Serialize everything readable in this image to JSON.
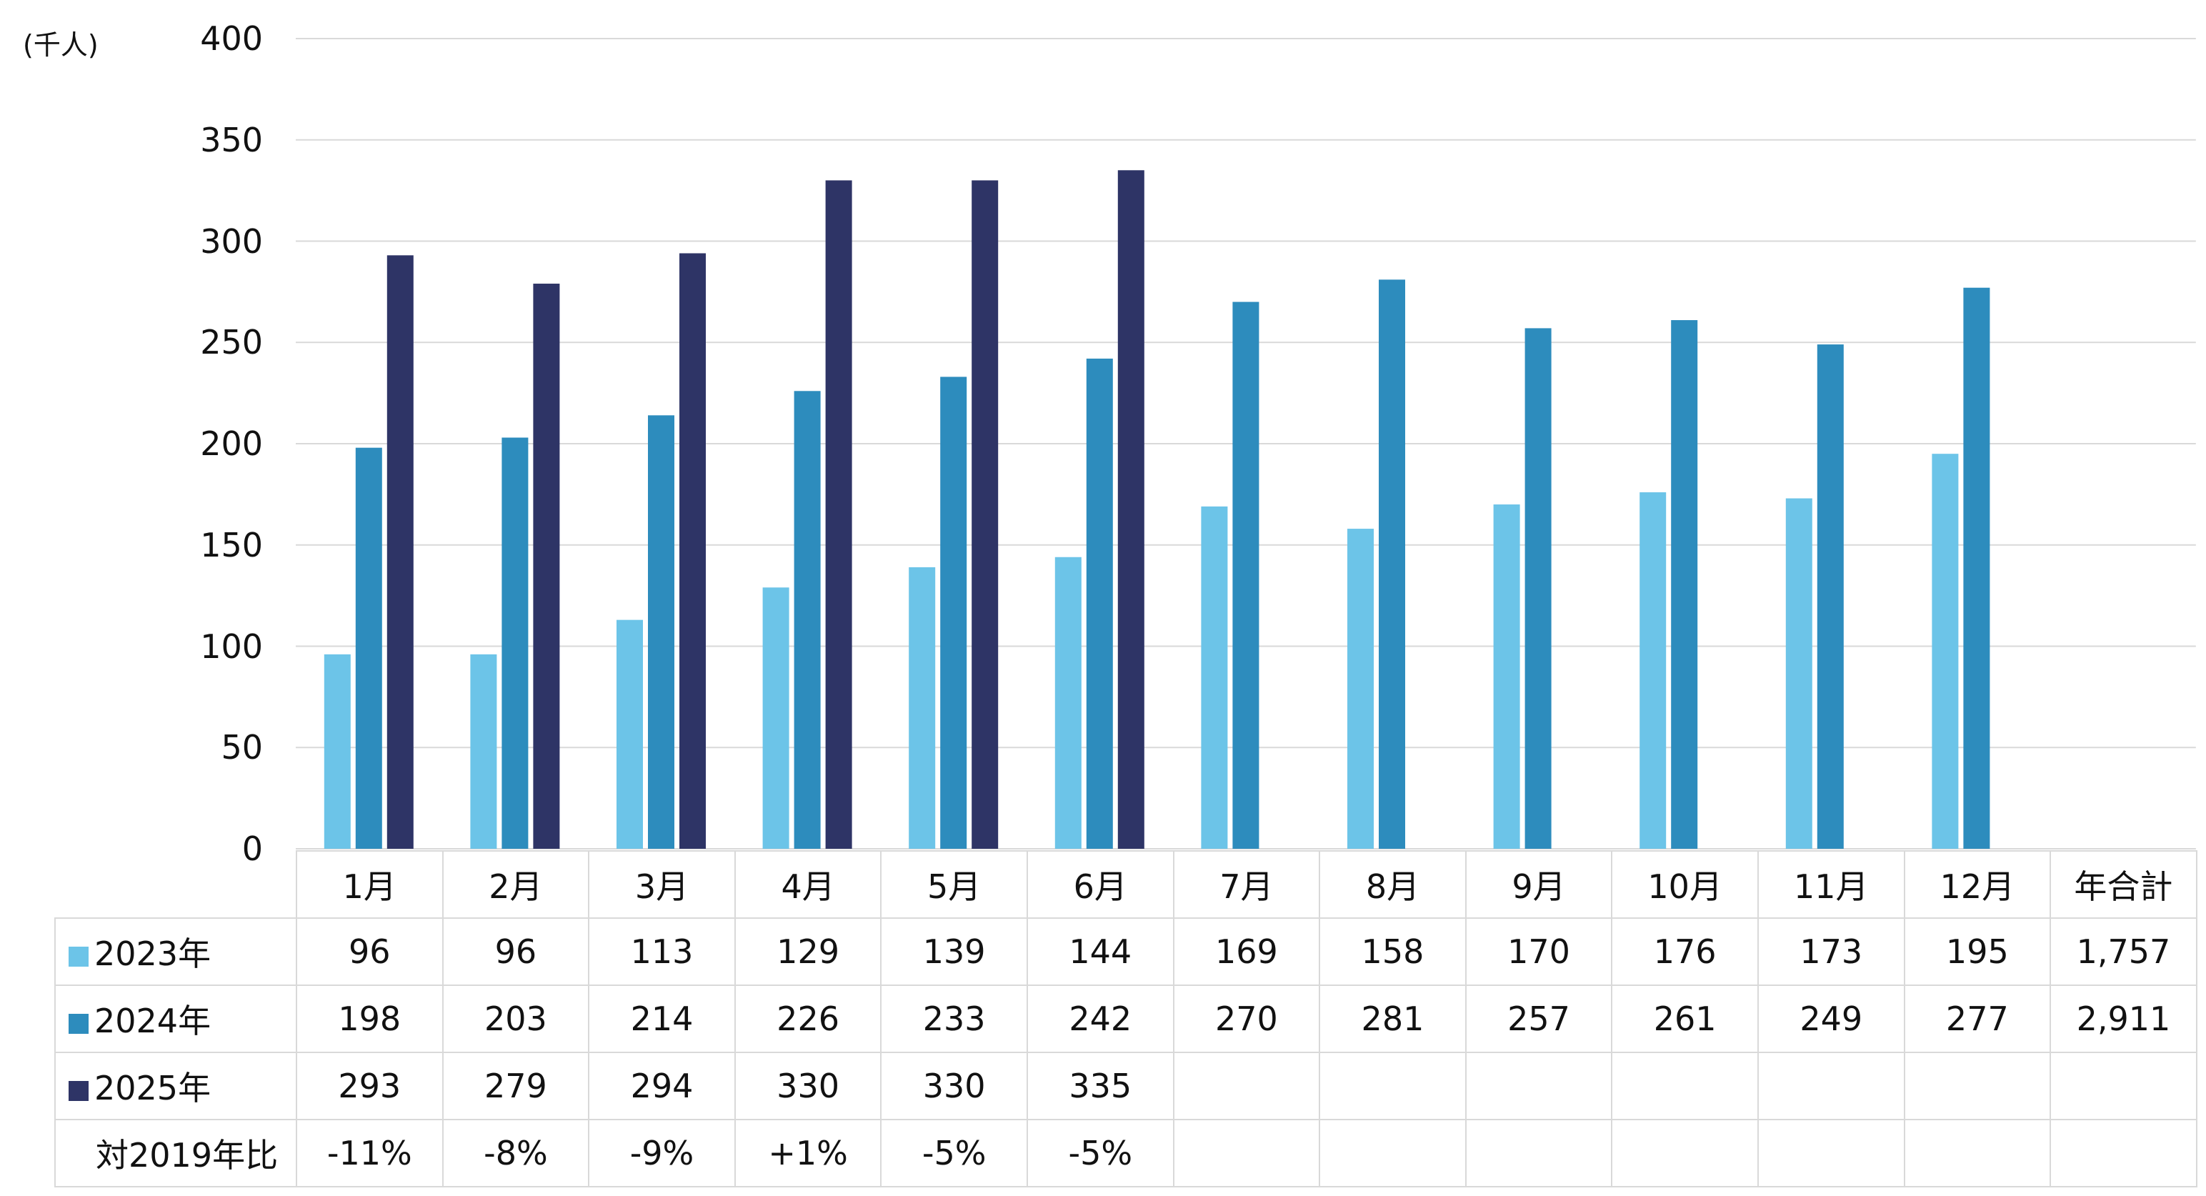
{
  "chart_data": {
    "type": "bar",
    "unit_label": "(千人)",
    "categories": [
      "1月",
      "2月",
      "3月",
      "4月",
      "5月",
      "6月",
      "7月",
      "8月",
      "9月",
      "10月",
      "11月",
      "12月"
    ],
    "series": [
      {
        "name": "2023年",
        "color": "#6cc4e8",
        "values": [
          96,
          96,
          113,
          129,
          139,
          144,
          169,
          158,
          170,
          176,
          173,
          195
        ]
      },
      {
        "name": "2024年",
        "color": "#2d8cbd",
        "values": [
          198,
          203,
          214,
          226,
          233,
          242,
          270,
          281,
          257,
          261,
          249,
          277
        ]
      },
      {
        "name": "2025年",
        "color": "#2e3466",
        "values": [
          293,
          279,
          294,
          330,
          330,
          335,
          null,
          null,
          null,
          null,
          null,
          null
        ]
      }
    ],
    "ylim": [
      0,
      400
    ],
    "yticks": [
      0,
      50,
      100,
      150,
      200,
      250,
      300,
      350,
      400
    ],
    "grid": true,
    "table": {
      "total_header": "年合計",
      "totals": [
        "1,757",
        "2,911",
        ""
      ],
      "ratio_label": "対2019年比",
      "ratio_values": [
        "-11%",
        "-8%",
        "-9%",
        "+1%",
        "-5%",
        "-5%",
        "",
        "",
        "",
        "",
        "",
        ""
      ]
    }
  }
}
